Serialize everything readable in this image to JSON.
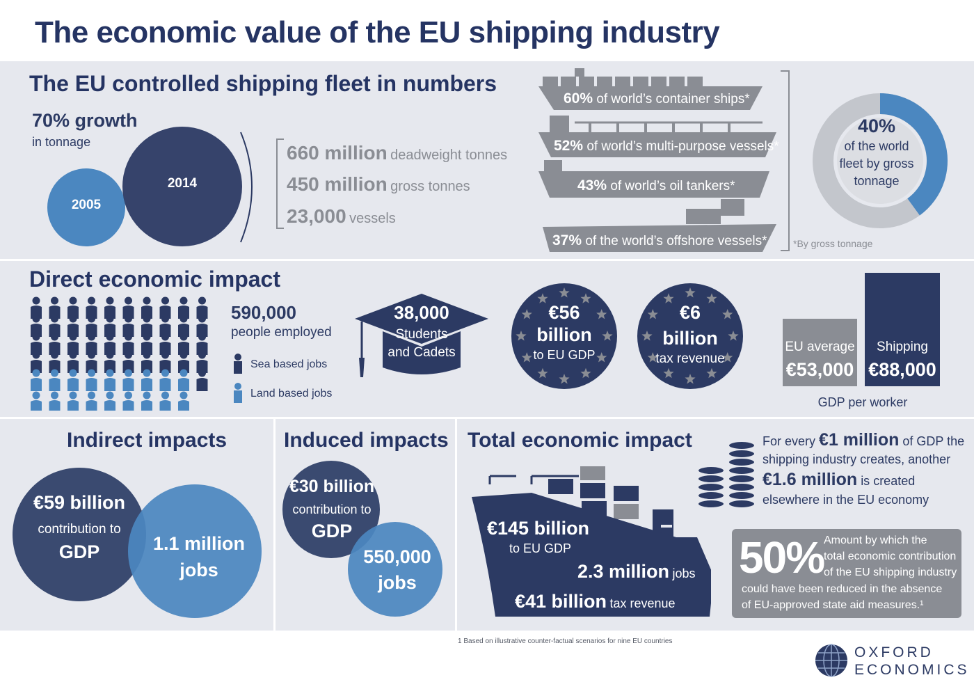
{
  "title": "The economic value of the EU shipping industry",
  "fleet": {
    "heading": "The EU controlled shipping fleet in numbers",
    "growth_value": "70% growth",
    "growth_label": "in tonnage",
    "year_small": "2005",
    "year_large": "2014",
    "stats": [
      {
        "value": "660 million",
        "label": "deadweight tonnes"
      },
      {
        "value": "450 million",
        "label": "gross tonnes"
      },
      {
        "value": "23,000",
        "label": "vessels"
      }
    ],
    "ships": [
      {
        "pct": "60%",
        "label": "of world’s container ships*"
      },
      {
        "pct": "52%",
        "label": "of world’s multi-purpose vessels*"
      },
      {
        "pct": "43%",
        "label": "of world’s oil tankers*"
      },
      {
        "pct": "37%",
        "label": "of the world’s offshore vessels*"
      }
    ],
    "world_pct": "40%",
    "world_label_1": "of the world",
    "world_label_2": "fleet by gross",
    "world_label_3": "tonnage",
    "world_share": 0.4,
    "footnote": "*By gross tonnage"
  },
  "direct": {
    "heading": "Direct economic impact",
    "people_value": "590,000",
    "people_label": "people employed",
    "legend_sea": "Sea based jobs",
    "legend_land": "Land based jobs",
    "cadets_value": "38,000",
    "cadets_label_1": "Students",
    "cadets_label_2": "and Cadets",
    "gdp_value_1": "€56",
    "gdp_value_2": "billion",
    "gdp_label": "to EU GDP",
    "tax_value_1": "€6",
    "tax_value_2": "billion",
    "tax_label": "tax revenue",
    "eu_avg_label": "EU average",
    "eu_avg_value": "€53,000",
    "shipping_label": "Shipping",
    "shipping_value": "€88,000",
    "gdp_per_worker": "GDP per worker"
  },
  "indirect": {
    "heading": "Indirect impacts",
    "gdp_value": "€59 billion",
    "gdp_label_1": "contribution to",
    "gdp_label_2": "GDP",
    "jobs_value": "1.1 million",
    "jobs_label": "jobs"
  },
  "induced": {
    "heading": "Induced impacts",
    "gdp_value": "€30 billion",
    "gdp_label_1": "contribution to",
    "gdp_label_2": "GDP",
    "jobs_value": "550,000",
    "jobs_label": "jobs"
  },
  "total": {
    "heading": "Total economic impact",
    "gdp_value": "€145 billion",
    "gdp_label": "to EU GDP",
    "jobs_value": "2.3 million",
    "jobs_label": "jobs",
    "tax_value": "€41 billion",
    "tax_label": "tax revenue",
    "every_1": "For every",
    "every_val": "€1 million",
    "every_2": "of GDP the",
    "every_3": "shipping industry creates, another",
    "every_val2": "€1.6 million",
    "every_4": "is created",
    "every_5": "elsewhere in the EU economy",
    "aid_pct": "50%",
    "aid_text_1": "Amount by which the",
    "aid_text_2": "total economic contribution",
    "aid_text_3": "of the EU shipping industry",
    "aid_text_4": "could have been reduced in the absence",
    "aid_text_5": "of EU-approved state aid measures.¹"
  },
  "footnote": "1 Based on illustrative counter-factual scenarios for nine EU countries",
  "logo_line_1": "OXFORD",
  "logo_line_2": "ECONOMICS",
  "colors": {
    "navy": "#2c3a63",
    "blue": "#4b87c0",
    "grey": "#8a8d94",
    "panel": "#e6e8ee"
  }
}
